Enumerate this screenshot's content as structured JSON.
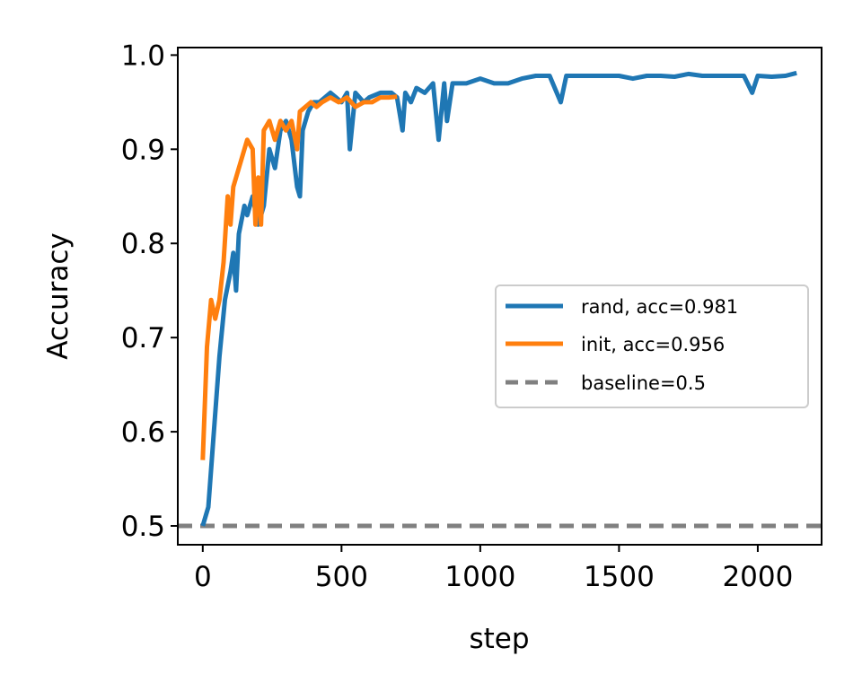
{
  "chart_data": {
    "type": "line",
    "xlabel": "step",
    "ylabel": "Accuracy",
    "xlim": [
      -90,
      2230
    ],
    "ylim": [
      0.48,
      1.008
    ],
    "xticks": [
      0,
      500,
      1000,
      1500,
      2000
    ],
    "yticks": [
      0.5,
      0.6,
      0.7,
      0.8,
      0.9,
      1.0
    ],
    "xtick_labels": [
      "0",
      "500",
      "1000",
      "1500",
      "2000"
    ],
    "ytick_labels": [
      "0.5",
      "0.6",
      "0.7",
      "0.8",
      "0.9",
      "1.0"
    ],
    "grid": false,
    "legend_position": "center-right",
    "legend": [
      {
        "label": "rand, acc=0.981",
        "color": "#1f77b4",
        "style": "solid"
      },
      {
        "label": "init, acc=0.956",
        "color": "#ff7f0e",
        "style": "solid"
      },
      {
        "label": "baseline=0.5",
        "color": "#808080",
        "style": "dashed"
      }
    ],
    "series": [
      {
        "name": "rand, acc=0.981",
        "color": "#1f77b4",
        "x": [
          0,
          20,
          40,
          60,
          80,
          100,
          110,
          120,
          130,
          150,
          160,
          180,
          200,
          220,
          240,
          260,
          280,
          300,
          320,
          340,
          350,
          360,
          380,
          400,
          420,
          440,
          460,
          480,
          500,
          520,
          530,
          550,
          580,
          600,
          640,
          680,
          700,
          720,
          730,
          750,
          770,
          800,
          830,
          850,
          870,
          880,
          900,
          950,
          1000,
          1050,
          1100,
          1150,
          1200,
          1250,
          1290,
          1310,
          1350,
          1400,
          1450,
          1500,
          1550,
          1600,
          1650,
          1700,
          1750,
          1800,
          1850,
          1900,
          1950,
          1980,
          2000,
          2050,
          2100,
          2140
        ],
        "y": [
          0.5,
          0.52,
          0.6,
          0.68,
          0.74,
          0.77,
          0.79,
          0.75,
          0.81,
          0.84,
          0.83,
          0.85,
          0.82,
          0.84,
          0.9,
          0.88,
          0.92,
          0.93,
          0.91,
          0.86,
          0.85,
          0.92,
          0.94,
          0.95,
          0.95,
          0.955,
          0.96,
          0.955,
          0.95,
          0.96,
          0.9,
          0.96,
          0.95,
          0.955,
          0.96,
          0.96,
          0.955,
          0.92,
          0.96,
          0.95,
          0.965,
          0.96,
          0.97,
          0.91,
          0.97,
          0.93,
          0.97,
          0.97,
          0.975,
          0.97,
          0.97,
          0.975,
          0.978,
          0.978,
          0.95,
          0.978,
          0.978,
          0.978,
          0.978,
          0.978,
          0.975,
          0.978,
          0.978,
          0.977,
          0.98,
          0.978,
          0.978,
          0.978,
          0.978,
          0.96,
          0.978,
          0.977,
          0.978,
          0.981
        ]
      },
      {
        "name": "init, acc=0.956",
        "color": "#ff7f0e",
        "x": [
          0,
          15,
          30,
          45,
          60,
          75,
          90,
          100,
          110,
          120,
          140,
          160,
          180,
          190,
          200,
          210,
          220,
          240,
          260,
          280,
          300,
          320,
          340,
          350,
          370,
          390,
          410,
          430,
          460,
          490,
          520,
          550,
          580,
          610,
          640,
          670,
          700
        ],
        "y": [
          0.57,
          0.69,
          0.74,
          0.72,
          0.74,
          0.78,
          0.85,
          0.82,
          0.86,
          0.87,
          0.89,
          0.91,
          0.9,
          0.82,
          0.87,
          0.82,
          0.92,
          0.93,
          0.91,
          0.93,
          0.92,
          0.93,
          0.9,
          0.94,
          0.945,
          0.95,
          0.945,
          0.95,
          0.955,
          0.95,
          0.955,
          0.945,
          0.95,
          0.95,
          0.955,
          0.955,
          0.956
        ]
      }
    ],
    "baseline": {
      "name": "baseline=0.5",
      "y": 0.5,
      "color": "#808080"
    }
  }
}
